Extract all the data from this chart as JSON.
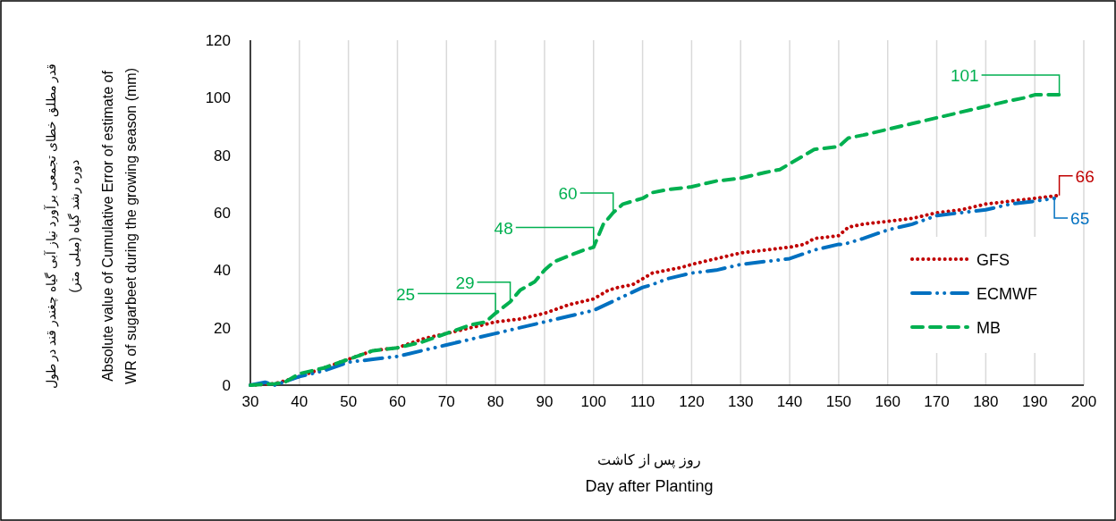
{
  "chart_data": {
    "type": "line",
    "xlabel": "روز پس از کاشت\nDay after Planting",
    "ylabel": "قدر مطلق خطای تجمعی برآورد نیاز آبی گیاه چغندر قند در طول\nدوره رشد گیاه (میلی متر)\nAbsolute value of Cumulative Error of estimate of\nWR of sugarbeet during the growing season (mm)",
    "xlim": [
      30,
      200
    ],
    "xticks": [
      30,
      40,
      50,
      60,
      70,
      80,
      90,
      100,
      110,
      120,
      130,
      140,
      150,
      160,
      170,
      180,
      190,
      200
    ],
    "ylim": [
      0,
      120
    ],
    "yticks": [
      0,
      20,
      40,
      60,
      80,
      100,
      120
    ],
    "grid": "x",
    "legend": "right",
    "series": [
      {
        "name": "GFS",
        "color": "#c00000",
        "line_style": "dotted",
        "x": [
          30,
          35,
          40,
          45,
          50,
          55,
          60,
          65,
          70,
          75,
          80,
          85,
          90,
          95,
          100,
          103,
          105,
          108,
          110,
          112,
          115,
          118,
          120,
          125,
          130,
          135,
          140,
          143,
          145,
          150,
          152,
          155,
          160,
          165,
          170,
          175,
          180,
          185,
          190,
          195
        ],
        "values": [
          0,
          0.5,
          3,
          6,
          9,
          12,
          13,
          16,
          18,
          20,
          22,
          23,
          25,
          28,
          30,
          33,
          34,
          35,
          37,
          39,
          40,
          41,
          42,
          44,
          46,
          47,
          48,
          49,
          51,
          52,
          55,
          56,
          57,
          58,
          60,
          61,
          63,
          64,
          65,
          66
        ],
        "value_labels": [
          null,
          null,
          null,
          null,
          null,
          null,
          null,
          null,
          null,
          null,
          null,
          null,
          null,
          null,
          null,
          null,
          null,
          null,
          null,
          null,
          null,
          null,
          null,
          null,
          null,
          null,
          null,
          null,
          null,
          null,
          null,
          null,
          null,
          null,
          null,
          null,
          null,
          null,
          null,
          "66"
        ]
      },
      {
        "name": "ECMWF",
        "color": "#0070c0",
        "line_style": "dashdot",
        "x": [
          30,
          33,
          35,
          40,
          45,
          50,
          55,
          60,
          65,
          70,
          75,
          80,
          85,
          90,
          95,
          100,
          105,
          110,
          112,
          115,
          120,
          125,
          130,
          135,
          140,
          145,
          150,
          151,
          155,
          160,
          165,
          170,
          175,
          180,
          185,
          190,
          194
        ],
        "values": [
          0,
          1,
          0,
          3,
          5,
          8,
          9,
          10,
          12,
          14,
          16,
          18,
          20,
          22,
          24,
          26,
          30,
          34,
          35,
          37,
          39,
          40,
          42,
          43,
          44,
          47,
          49,
          49,
          51,
          54,
          56,
          59,
          60,
          61,
          63,
          64,
          65
        ],
        "value_labels": [
          null,
          null,
          null,
          null,
          null,
          null,
          null,
          null,
          null,
          null,
          null,
          null,
          null,
          null,
          null,
          null,
          null,
          null,
          null,
          null,
          null,
          null,
          null,
          null,
          null,
          null,
          null,
          null,
          null,
          null,
          null,
          null,
          null,
          null,
          null,
          null,
          "65"
        ]
      },
      {
        "name": "MB",
        "color": "#00b050",
        "line_style": "dashed",
        "x": [
          30,
          35,
          37,
          40,
          45,
          50,
          55,
          60,
          65,
          70,
          75,
          78,
          80,
          83,
          85,
          88,
          90,
          92,
          95,
          98,
          100,
          102,
          104,
          106,
          110,
          112,
          115,
          120,
          125,
          130,
          135,
          138,
          140,
          143,
          145,
          150,
          152,
          155,
          160,
          165,
          170,
          175,
          180,
          185,
          188,
          190,
          195
        ],
        "values": [
          0,
          0.5,
          1,
          4,
          6,
          9,
          12,
          13,
          15,
          18,
          21,
          22,
          25,
          29,
          33,
          36,
          40,
          43,
          45,
          47,
          48,
          56,
          60,
          63,
          65,
          67,
          68,
          69,
          71,
          72,
          74,
          75,
          77,
          80,
          82,
          83,
          86,
          87,
          89,
          91,
          93,
          95,
          97,
          99,
          100,
          101,
          101
        ],
        "value_labels": [
          null,
          null,
          null,
          null,
          null,
          null,
          null,
          null,
          null,
          null,
          null,
          null,
          "25",
          "29",
          null,
          null,
          null,
          null,
          null,
          null,
          "48",
          null,
          "60",
          null,
          null,
          null,
          null,
          null,
          null,
          null,
          null,
          null,
          null,
          null,
          null,
          null,
          null,
          null,
          null,
          null,
          null,
          null,
          null,
          null,
          null,
          null,
          "101"
        ]
      }
    ]
  }
}
